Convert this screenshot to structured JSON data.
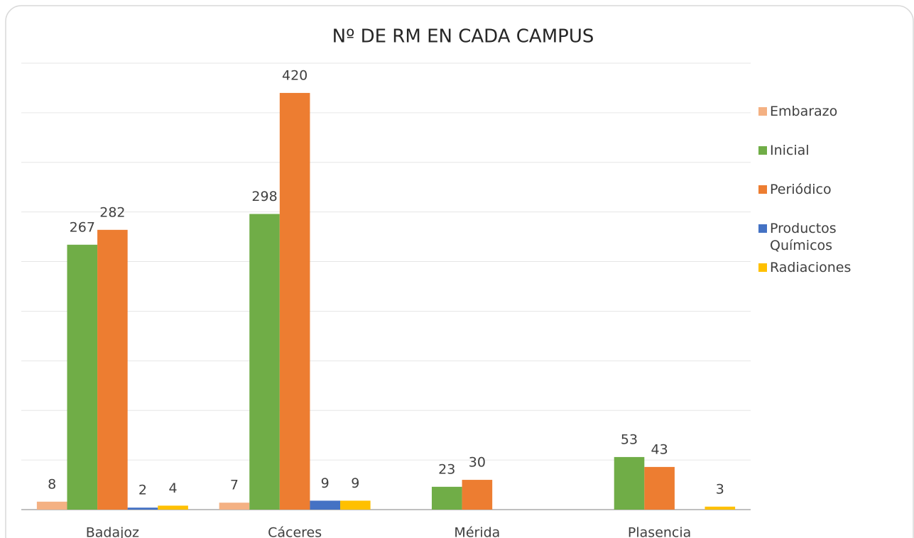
{
  "chart_data": {
    "type": "bar",
    "title": "Nº DE RM EN CADA CAMPUS",
    "categories": [
      "Badajoz",
      "Cáceres",
      "Mérida",
      "Plasencia"
    ],
    "series": [
      {
        "name": "Embarazo",
        "color": "#f4b183",
        "values": [
          8,
          7,
          null,
          null
        ]
      },
      {
        "name": "Inicial",
        "color": "#70ad47",
        "values": [
          267,
          298,
          23,
          53
        ]
      },
      {
        "name": "Periódico",
        "color": "#ed7d31",
        "values": [
          282,
          420,
          30,
          43
        ]
      },
      {
        "name": "Productos Químicos",
        "color": "#4472c4",
        "values": [
          2,
          9,
          null,
          null
        ]
      },
      {
        "name": "Radiaciones",
        "color": "#ffc000",
        "values": [
          4,
          9,
          null,
          3
        ]
      }
    ],
    "ylim": [
      0,
      450
    ],
    "yticks": [
      0,
      50,
      100,
      150,
      200,
      250,
      300,
      350,
      400,
      450
    ],
    "grid": true,
    "legend": "right"
  }
}
